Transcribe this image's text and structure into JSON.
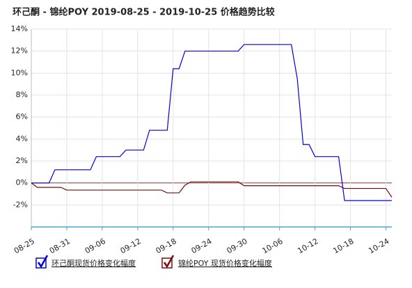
{
  "chart_data": {
    "type": "line",
    "title": "环己酮 - 锦纶POY 2019-08-25 - 2019-10-25 价格趋势比较",
    "categories": [
      "08-25",
      null,
      null,
      null,
      null,
      null,
      "08-31",
      null,
      null,
      null,
      null,
      null,
      "09-06",
      null,
      null,
      null,
      null,
      null,
      "09-12",
      null,
      null,
      null,
      null,
      null,
      "09-18",
      null,
      null,
      null,
      null,
      null,
      "09-24",
      null,
      null,
      null,
      null,
      null,
      "09-30",
      null,
      null,
      null,
      null,
      null,
      "10-06",
      null,
      null,
      null,
      null,
      null,
      "10-12",
      null,
      null,
      null,
      null,
      null,
      "10-18",
      null,
      null,
      null,
      null,
      null,
      "10-24",
      null
    ],
    "series": [
      {
        "name": "环己酮现货价格变化幅度",
        "color": "#0000dd",
        "values": [
          0,
          0,
          0,
          0,
          1.2,
          1.2,
          1.2,
          1.2,
          1.2,
          1.2,
          1.2,
          2.4,
          2.4,
          2.4,
          2.4,
          2.4,
          3,
          3,
          3,
          3,
          4.8,
          4.8,
          4.8,
          4.8,
          10.4,
          10.4,
          12,
          12,
          12,
          12,
          12,
          12,
          12,
          12,
          12,
          12,
          12.6,
          12.6,
          12.6,
          12.6,
          12.6,
          12.6,
          12.6,
          12.6,
          12.6,
          9.5,
          3.5,
          3.5,
          2.4,
          2.4,
          2.4,
          2.4,
          2.4,
          -1.6,
          -1.6,
          -1.6,
          -1.6,
          -1.6,
          -1.6,
          -1.6,
          -1.6,
          -1.6
        ]
      },
      {
        "name": "锦纶POY 现货价格变化幅度",
        "color": "#7a0a0a",
        "values": [
          0,
          -0.4,
          -0.4,
          -0.4,
          -0.4,
          -0.4,
          -0.65,
          -0.65,
          -0.65,
          -0.65,
          -0.65,
          -0.65,
          -0.65,
          -0.65,
          -0.65,
          -0.65,
          -0.65,
          -0.65,
          -0.65,
          -0.65,
          -0.65,
          -0.65,
          -0.65,
          -0.9,
          -0.9,
          -0.9,
          -0.2,
          0.1,
          0.1,
          0.1,
          0.1,
          0.1,
          0.1,
          0.1,
          0.1,
          0.1,
          -0.25,
          -0.25,
          -0.25,
          -0.25,
          -0.25,
          -0.25,
          -0.25,
          -0.25,
          -0.25,
          -0.25,
          -0.25,
          -0.25,
          -0.25,
          -0.25,
          -0.25,
          -0.25,
          -0.25,
          -0.5,
          -0.5,
          -0.5,
          -0.5,
          -0.5,
          -0.5,
          -0.5,
          -0.5,
          -1.3
        ]
      }
    ],
    "ylim": [
      -4,
      14
    ],
    "yticks": [
      {
        "value": -2,
        "label": "-2%"
      },
      {
        "value": 0,
        "label": "0%"
      },
      {
        "value": 2,
        "label": "2%"
      },
      {
        "value": 4,
        "label": "4%"
      },
      {
        "value": 6,
        "label": "6%"
      },
      {
        "value": 8,
        "label": "8%"
      },
      {
        "value": 10,
        "label": "10%"
      },
      {
        "value": 12,
        "label": "12%"
      },
      {
        "value": 14,
        "label": "14%"
      }
    ],
    "grid": true
  }
}
